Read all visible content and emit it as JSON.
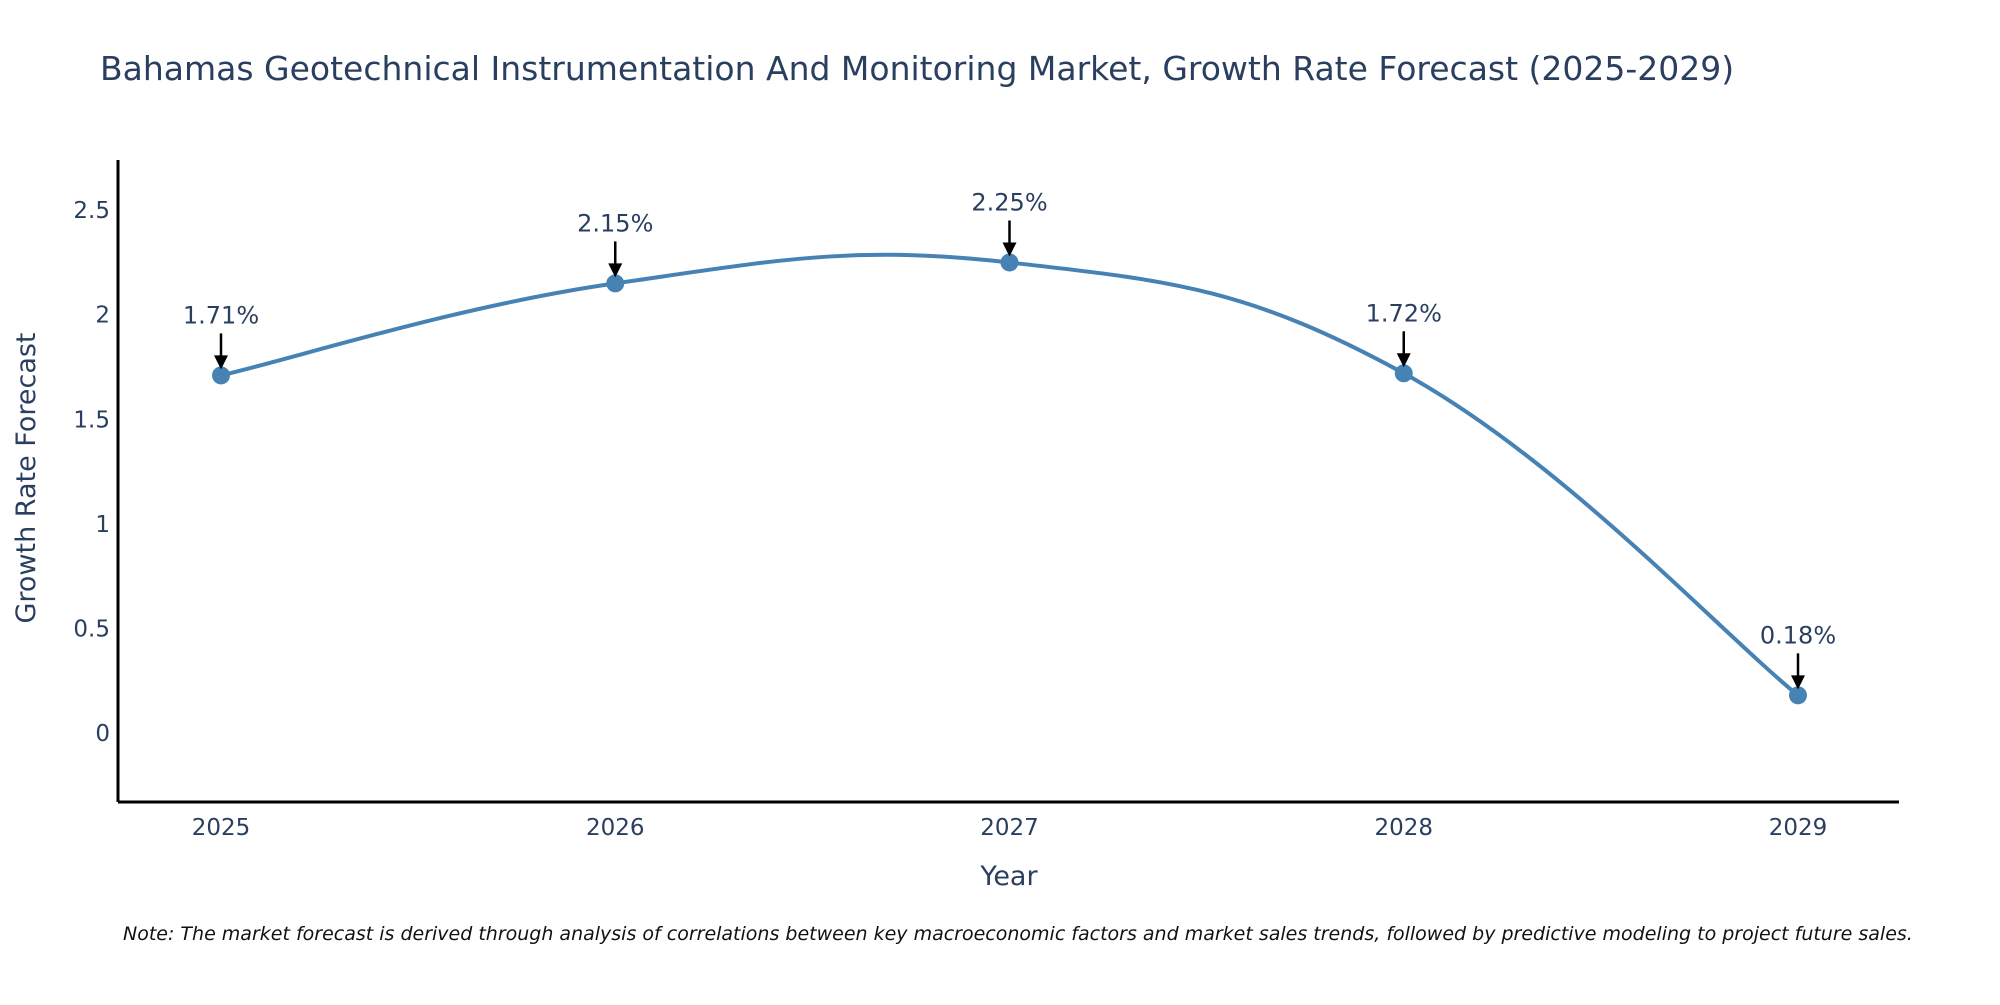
{
  "chart_data": {
    "type": "line",
    "title": "Bahamas Geotechnical Instrumentation And Monitoring Market, Growth Rate Forecast (2025-2029)",
    "xlabel": "Year",
    "ylabel": "Growth Rate Forecast",
    "categories": [
      "2025",
      "2026",
      "2027",
      "2028",
      "2029"
    ],
    "series": [
      {
        "name": "Growth Rate Forecast",
        "values": [
          1.71,
          2.15,
          2.25,
          1.72,
          0.18
        ]
      }
    ],
    "data_labels": [
      "1.71%",
      "2.15%",
      "2.25%",
      "1.72%",
      "0.18%"
    ],
    "ylim": [
      -0.33,
      2.74
    ],
    "yticks": [
      0,
      0.5,
      1,
      1.5,
      2,
      2.5
    ],
    "ytick_labels": [
      "0",
      "0.5",
      "1",
      "1.5",
      "2",
      "2.5"
    ],
    "grid": false,
    "line_color": "#4682b4",
    "marker_color": "#4682b4",
    "note": "Note: The market forecast is derived through analysis of correlations between key macroeconomic factors and market sales trends, followed by predictive modeling to project future sales."
  }
}
